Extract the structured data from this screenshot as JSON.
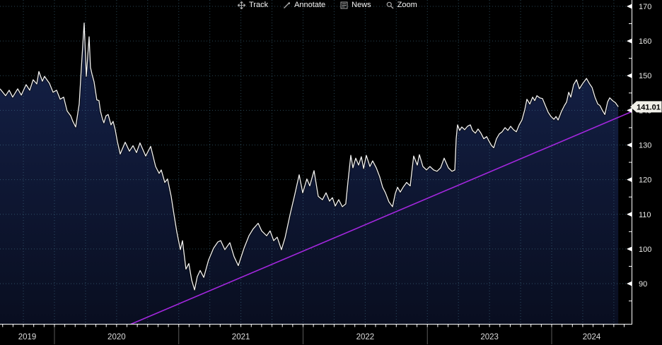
{
  "toolbar": {
    "items": [
      {
        "label": "Track",
        "icon": "track-crosshair-icon"
      },
      {
        "label": "Annotate",
        "icon": "annotate-pencil-icon"
      },
      {
        "label": "News",
        "icon": "news-icon"
      },
      {
        "label": "Zoom",
        "icon": "zoom-magnifier-icon"
      }
    ]
  },
  "price_label": {
    "value": "141.01"
  },
  "colors": {
    "background": "#000000",
    "area_fill_top": "#15224a",
    "area_fill_bottom": "#090e20",
    "price_line": "#f2f2f2",
    "line_shadow": "#000000",
    "trend_line": "#a227dd",
    "grid": "#4a7d96",
    "axis": "#ffffff",
    "axis_label": "#e8e8e6",
    "year_label": "#dcdcdc",
    "year_separator": "#5a5a5a",
    "tag_bg": "#f0efe8",
    "tag_text": "#000000"
  },
  "chart_data": {
    "type": "area",
    "title": "",
    "xlabel": "",
    "ylabel": "",
    "legend": "none",
    "grid": "dotted",
    "x_domain": [
      2019.562,
      2024.643
    ],
    "y_domain": [
      78.3,
      171.83
    ],
    "x_year_labels": [
      "2019",
      "2020",
      "2021",
      "2022",
      "2023",
      "2024"
    ],
    "y_ticks": [
      90,
      100,
      110,
      120,
      130,
      140,
      150,
      160,
      170
    ],
    "y_minor_ticks": [
      85,
      95,
      105,
      115,
      125,
      135,
      145,
      155,
      165
    ],
    "last_value": 141.01,
    "trend_line": {
      "t1": 2020.615,
      "v1": 78.3,
      "t2": 2024.643,
      "v2": 139.6
    },
    "series": [
      {
        "name": "price",
        "points": [
          [
            2019.562,
            146.2
          ],
          [
            2019.607,
            144.2
          ],
          [
            2019.636,
            145.8
          ],
          [
            2019.664,
            143.8
          ],
          [
            2019.704,
            146.2
          ],
          [
            2019.733,
            144.4
          ],
          [
            2019.772,
            147.4
          ],
          [
            2019.801,
            145.8
          ],
          [
            2019.829,
            148.8
          ],
          [
            2019.858,
            147.6
          ],
          [
            2019.875,
            151.2
          ],
          [
            2019.903,
            148.4
          ],
          [
            2019.92,
            149.8
          ],
          [
            2019.96,
            147.8
          ],
          [
            2019.989,
            145.2
          ],
          [
            2020.017,
            145.8
          ],
          [
            2020.046,
            143.2
          ],
          [
            2020.074,
            143.8
          ],
          [
            2020.102,
            139.8
          ],
          [
            2020.131,
            138.4
          ],
          [
            2020.148,
            136.8
          ],
          [
            2020.171,
            135.2
          ],
          [
            2020.199,
            141.8
          ],
          [
            2020.216,
            151.8
          ],
          [
            2020.239,
            165.2
          ],
          [
            2020.256,
            149.8
          ],
          [
            2020.279,
            161.2
          ],
          [
            2020.29,
            152.4
          ],
          [
            2020.302,
            150.4
          ],
          [
            2020.319,
            148.2
          ],
          [
            2020.341,
            143.0
          ],
          [
            2020.358,
            142.8
          ],
          [
            2020.37,
            139.8
          ],
          [
            2020.387,
            137.4
          ],
          [
            2020.398,
            136.4
          ],
          [
            2020.415,
            138.4
          ],
          [
            2020.432,
            138.8
          ],
          [
            2020.455,
            135.8
          ],
          [
            2020.472,
            136.8
          ],
          [
            2020.489,
            134.4
          ],
          [
            2020.506,
            131.0
          ],
          [
            2020.529,
            127.4
          ],
          [
            2020.569,
            130.8
          ],
          [
            2020.603,
            128.2
          ],
          [
            2020.632,
            129.8
          ],
          [
            2020.66,
            127.8
          ],
          [
            2020.688,
            130.6
          ],
          [
            2020.734,
            126.8
          ],
          [
            2020.774,
            129.6
          ],
          [
            2020.814,
            123.8
          ],
          [
            2020.842,
            121.8
          ],
          [
            2020.859,
            122.8
          ],
          [
            2020.888,
            119.2
          ],
          [
            2020.91,
            120.2
          ],
          [
            2020.939,
            115.2
          ],
          [
            2020.956,
            111.2
          ],
          [
            2020.984,
            105.0
          ],
          [
            2021.013,
            99.8
          ],
          [
            2021.03,
            102.4
          ],
          [
            2021.058,
            94.2
          ],
          [
            2021.081,
            95.8
          ],
          [
            2021.104,
            91.0
          ],
          [
            2021.127,
            88.2
          ],
          [
            2021.149,
            92.0
          ],
          [
            2021.172,
            93.8
          ],
          [
            2021.201,
            91.8
          ],
          [
            2021.24,
            96.8
          ],
          [
            2021.28,
            100.2
          ],
          [
            2021.314,
            102.0
          ],
          [
            2021.337,
            102.4
          ],
          [
            2021.371,
            99.8
          ],
          [
            2021.411,
            101.8
          ],
          [
            2021.445,
            97.8
          ],
          [
            2021.479,
            95.2
          ],
          [
            2021.525,
            100.2
          ],
          [
            2021.565,
            103.8
          ],
          [
            2021.599,
            105.8
          ],
          [
            2021.639,
            107.4
          ],
          [
            2021.667,
            105.2
          ],
          [
            2021.707,
            103.8
          ],
          [
            2021.735,
            105.2
          ],
          [
            2021.764,
            102.4
          ],
          [
            2021.792,
            103.4
          ],
          [
            2021.826,
            99.8
          ],
          [
            2021.855,
            103.2
          ],
          [
            2021.895,
            109.8
          ],
          [
            2021.934,
            115.8
          ],
          [
            2021.969,
            121.4
          ],
          [
            2021.997,
            116.2
          ],
          [
            2022.031,
            120.2
          ],
          [
            2022.054,
            118.2
          ],
          [
            2022.088,
            122.6
          ],
          [
            2022.122,
            115.2
          ],
          [
            2022.156,
            114.2
          ],
          [
            2022.185,
            116.2
          ],
          [
            2022.213,
            113.8
          ],
          [
            2022.236,
            114.8
          ],
          [
            2022.259,
            112.4
          ],
          [
            2022.287,
            114.2
          ],
          [
            2022.316,
            112.2
          ],
          [
            2022.344,
            113.0
          ],
          [
            2022.361,
            119.2
          ],
          [
            2022.384,
            127.0
          ],
          [
            2022.401,
            123.4
          ],
          [
            2022.424,
            126.2
          ],
          [
            2022.447,
            124.2
          ],
          [
            2022.469,
            126.6
          ],
          [
            2022.487,
            123.2
          ],
          [
            2022.509,
            127.0
          ],
          [
            2022.538,
            123.8
          ],
          [
            2022.56,
            125.4
          ],
          [
            2022.589,
            123.4
          ],
          [
            2022.617,
            120.8
          ],
          [
            2022.64,
            117.8
          ],
          [
            2022.663,
            116.2
          ],
          [
            2022.691,
            113.6
          ],
          [
            2022.72,
            112.2
          ],
          [
            2022.742,
            116.0
          ],
          [
            2022.76,
            117.8
          ],
          [
            2022.782,
            116.4
          ],
          [
            2022.805,
            117.8
          ],
          [
            2022.833,
            119.2
          ],
          [
            2022.862,
            118.2
          ],
          [
            2022.89,
            126.8
          ],
          [
            2022.919,
            124.2
          ],
          [
            2022.936,
            127.2
          ],
          [
            2022.964,
            123.8
          ],
          [
            2022.993,
            122.8
          ],
          [
            2023.021,
            123.8
          ],
          [
            2023.05,
            122.8
          ],
          [
            2023.078,
            122.4
          ],
          [
            2023.107,
            123.4
          ],
          [
            2023.135,
            126.2
          ],
          [
            2023.169,
            123.4
          ],
          [
            2023.198,
            122.4
          ],
          [
            2023.221,
            122.8
          ],
          [
            2023.232,
            131.8
          ],
          [
            2023.243,
            135.8
          ],
          [
            2023.26,
            134.2
          ],
          [
            2023.277,
            135.2
          ],
          [
            2023.3,
            134.4
          ],
          [
            2023.323,
            135.4
          ],
          [
            2023.346,
            135.8
          ],
          [
            2023.363,
            134.2
          ],
          [
            2023.386,
            133.4
          ],
          [
            2023.408,
            134.6
          ],
          [
            2023.431,
            133.4
          ],
          [
            2023.454,
            131.8
          ],
          [
            2023.477,
            132.4
          ],
          [
            2023.494,
            131.2
          ],
          [
            2023.517,
            129.8
          ],
          [
            2023.534,
            129.2
          ],
          [
            2023.556,
            131.8
          ],
          [
            2023.579,
            133.2
          ],
          [
            2023.602,
            133.8
          ],
          [
            2023.625,
            135.0
          ],
          [
            2023.648,
            134.2
          ],
          [
            2023.67,
            135.4
          ],
          [
            2023.693,
            134.4
          ],
          [
            2023.716,
            133.8
          ],
          [
            2023.739,
            135.8
          ],
          [
            2023.761,
            137.2
          ],
          [
            2023.784,
            140.2
          ],
          [
            2023.801,
            143.2
          ],
          [
            2023.824,
            141.8
          ],
          [
            2023.847,
            143.8
          ],
          [
            2023.864,
            142.8
          ],
          [
            2023.881,
            144.2
          ],
          [
            2023.904,
            143.6
          ],
          [
            2023.926,
            143.4
          ],
          [
            2023.949,
            141.4
          ],
          [
            2023.972,
            139.4
          ],
          [
            2023.995,
            138.2
          ],
          [
            2024.018,
            137.4
          ],
          [
            2024.035,
            138.2
          ],
          [
            2024.052,
            137.2
          ],
          [
            2024.08,
            139.8
          ],
          [
            2024.103,
            141.4
          ],
          [
            2024.12,
            142.4
          ],
          [
            2024.137,
            145.2
          ],
          [
            2024.154,
            143.8
          ],
          [
            2024.177,
            147.4
          ],
          [
            2024.2,
            148.8
          ],
          [
            2024.223,
            146.2
          ],
          [
            2024.251,
            147.8
          ],
          [
            2024.28,
            149.2
          ],
          [
            2024.302,
            147.8
          ],
          [
            2024.325,
            146.6
          ],
          [
            2024.348,
            143.8
          ],
          [
            2024.371,
            141.8
          ],
          [
            2024.388,
            141.4
          ],
          [
            2024.411,
            139.8
          ],
          [
            2024.428,
            138.8
          ],
          [
            2024.45,
            142.4
          ],
          [
            2024.467,
            143.6
          ],
          [
            2024.49,
            142.8
          ],
          [
            2024.513,
            142.2
          ],
          [
            2024.536,
            141.01
          ]
        ]
      }
    ]
  }
}
